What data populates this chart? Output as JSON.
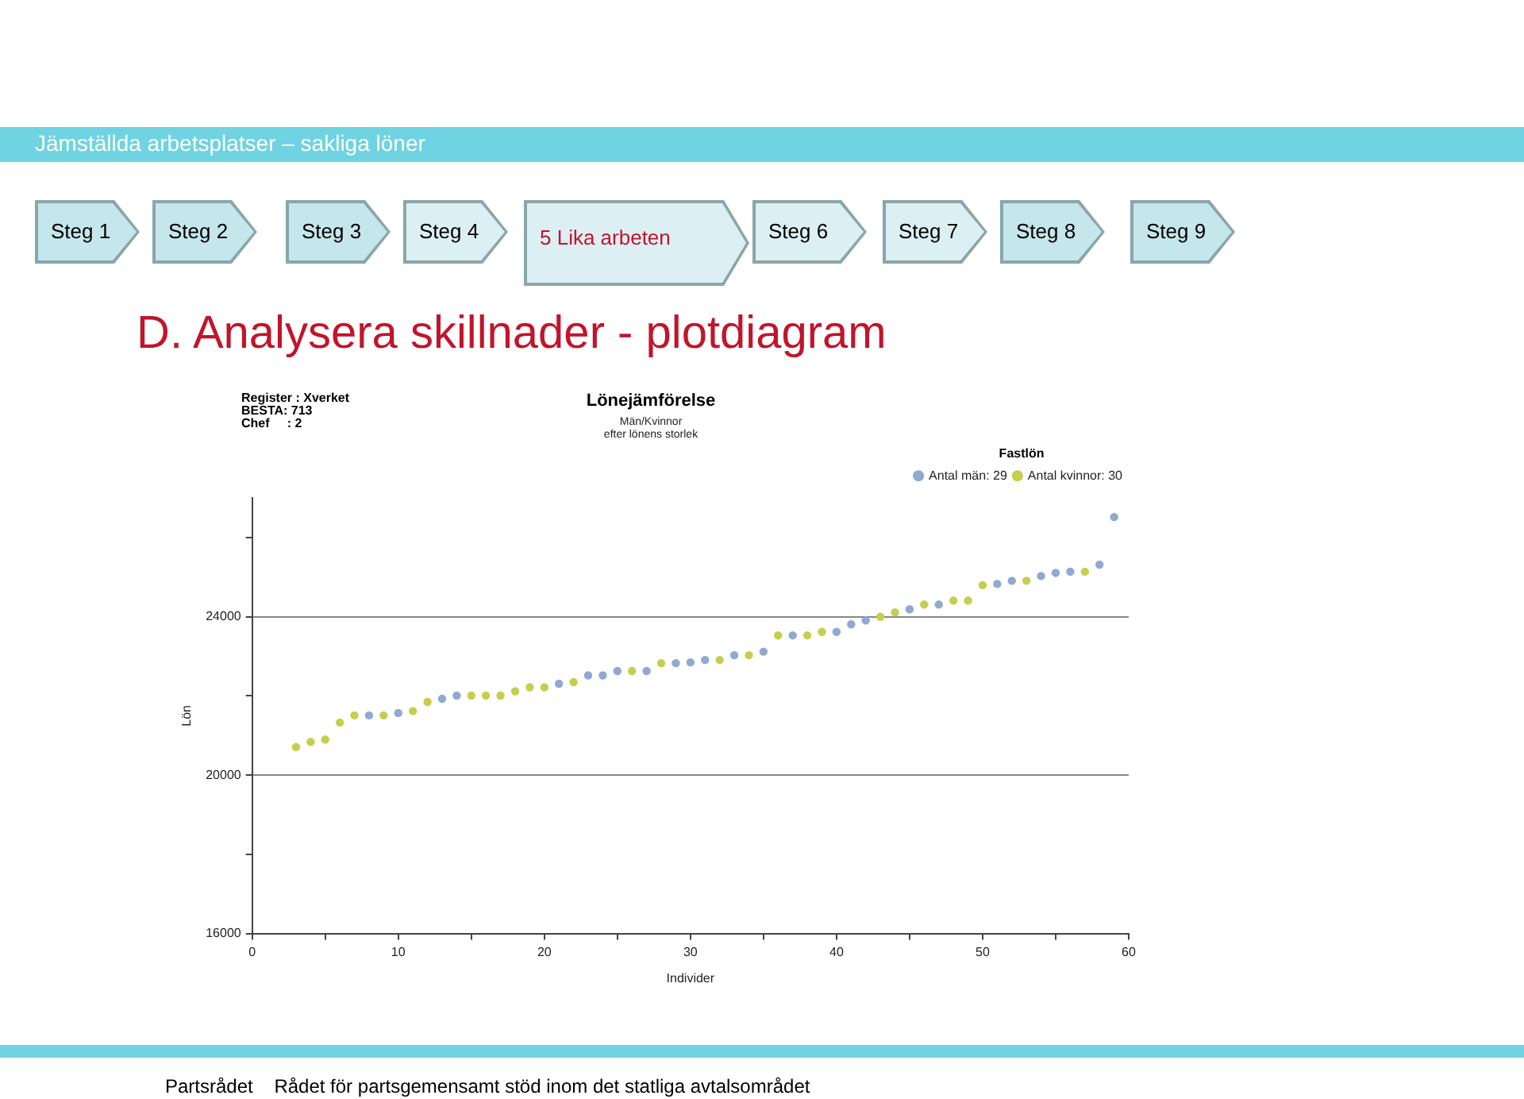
{
  "chart_data": {
    "type": "scatter",
    "title": "Lönejämförelse",
    "subtitle": "Män/Kvinnor\nefter lönens storlek",
    "xlabel": "Individer",
    "ylabel": "Lön",
    "legend_title": "Fastlön",
    "annotations": [
      "Jämställda arbetsplatser – sakliga löner",
      "Steg 1",
      "Steg 2",
      "Steg 3",
      "Steg 4",
      "5 Lika arbeten",
      "Steg 6",
      "Steg 7",
      "Steg 8",
      "Steg 9",
      "D. Analysera skillnader - plotdiagram",
      "Register : Xverket",
      "BESTA: 713",
      "Chef     : 2",
      "Partsrådet    Rådet för partsgemensamt stöd inom det statliga avtalsområdet"
    ],
    "series": [
      {
        "name": "Antal män: 29",
        "color": "#8fa9d2",
        "x": [
          8,
          10,
          13,
          14,
          21,
          23,
          24,
          25,
          27,
          29,
          30,
          31,
          33,
          35,
          37,
          40,
          41,
          42,
          45,
          47,
          51,
          52,
          54,
          55,
          56,
          58,
          59
        ],
        "values": [
          21510,
          21570,
          21930,
          22010,
          22310,
          22520,
          22520,
          22630,
          22630,
          22830,
          22850,
          22910,
          23030,
          23120,
          23530,
          23620,
          23810,
          23910,
          24190,
          24310,
          24830,
          24910,
          25030,
          25110,
          25140,
          25320,
          26520
        ]
      },
      {
        "name": "Antal kvinnor: 30",
        "color": "#c5cf4e",
        "x": [
          3,
          4,
          5,
          6,
          7,
          9,
          11,
          12,
          15,
          16,
          17,
          18,
          19,
          20,
          22,
          26,
          28,
          32,
          34,
          36,
          38,
          39,
          43,
          44,
          46,
          48,
          49,
          50,
          53,
          57
        ],
        "values": [
          20710,
          20840,
          20900,
          21330,
          21510,
          21510,
          21620,
          21850,
          22010,
          22010,
          22010,
          22120,
          22220,
          22220,
          22350,
          22630,
          22830,
          22910,
          23030,
          23530,
          23530,
          23620,
          24000,
          24110,
          24310,
          24410,
          24410,
          24800,
          24910,
          25140
        ]
      }
    ],
    "xlim": [
      0,
      60
    ],
    "xticks": [
      0,
      {
        "value": 5,
        "label": null
      },
      10,
      {
        "value": 15,
        "label": null
      },
      20,
      {
        "value": 25,
        "label": null
      },
      30,
      {
        "value": 35,
        "label": null
      },
      40,
      {
        "value": 45,
        "label": null
      },
      50,
      {
        "value": 55,
        "label": null
      },
      60
    ],
    "ylim": [
      16000,
      27000
    ],
    "yticks": [
      16000,
      {
        "value": 18000,
        "label": null
      },
      20000,
      {
        "value": 22000,
        "label": null
      },
      24000,
      {
        "value": 26000,
        "label": null
      }
    ],
    "grid": "y",
    "legend": "top right",
    "marker": "circle"
  }
}
